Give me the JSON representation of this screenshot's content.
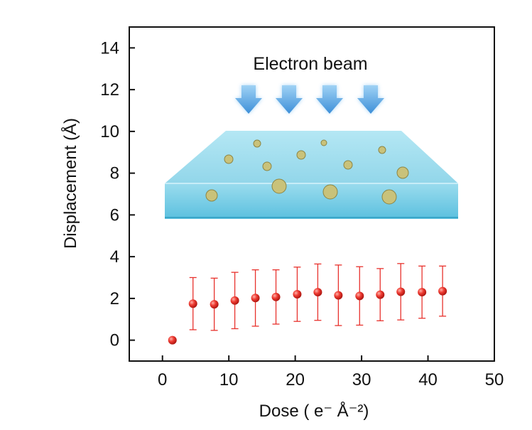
{
  "chart_data": {
    "type": "scatter",
    "title": "",
    "xlabel": "Dose ( e⁻ Å⁻²)",
    "ylabel": "Displacement (Å)",
    "xlim": [
      -5,
      50
    ],
    "ylim": [
      -1,
      15
    ],
    "xticks": [
      0,
      10,
      20,
      30,
      40,
      50
    ],
    "yticks": [
      0,
      2,
      4,
      6,
      8,
      10,
      12,
      14
    ],
    "xtick_labels": [
      "0",
      "10",
      "20",
      "30",
      "40",
      "50"
    ],
    "ytick_labels": [
      "0",
      "2",
      "4",
      "6",
      "8",
      "10",
      "12",
      "14"
    ],
    "grid": false,
    "legend": "none",
    "marker_color": "#e8322d",
    "errorbar_color": "#e8322d",
    "series": [
      {
        "x": [
          1.5,
          4.6,
          7.8,
          10.9,
          14.0,
          17.1,
          20.3,
          23.4,
          26.5,
          29.7,
          32.8,
          35.9,
          39.1,
          42.2
        ],
        "y": [
          0.0,
          1.75,
          1.72,
          1.9,
          2.02,
          2.07,
          2.2,
          2.3,
          2.15,
          2.12,
          2.18,
          2.32,
          2.3,
          2.35
        ],
        "yerr": [
          0.0,
          1.25,
          1.25,
          1.35,
          1.35,
          1.3,
          1.3,
          1.35,
          1.45,
          1.4,
          1.25,
          1.35,
          1.25,
          1.2
        ]
      }
    ],
    "inset": {
      "label": "Electron beam",
      "arrow_count": 4,
      "description_colors": {
        "water": "#7fd3e8",
        "arrow": "#5aa9e6",
        "particle": "#c9c27a"
      }
    }
  }
}
